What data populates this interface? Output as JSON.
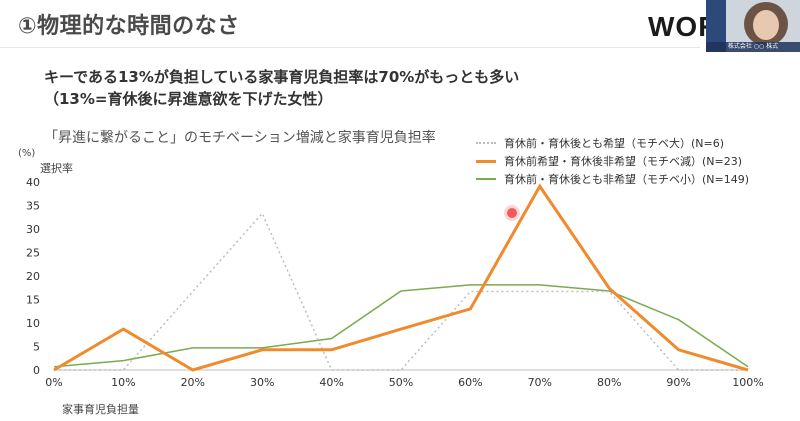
{
  "slide": {
    "title": "①物理的な時間のなさ",
    "logo_text": "WOR",
    "presenter_caption": "株式会社 ○○ 株式"
  },
  "headline": {
    "line1": "キーである13%が負担している家事育児負担率は70%がもっとも多い",
    "line2": "（13%=育休後に昇進意欲を下げた女性）"
  },
  "chart_data": {
    "type": "line",
    "title": "「昇進に繋がること」のモチベーション増減と家事育児負担率",
    "unit_label": "(%)",
    "ylabel": "選択率",
    "xlabel": "家事育児負担量",
    "categories": [
      "0%",
      "10%",
      "20%",
      "30%",
      "40%",
      "50%",
      "60%",
      "70%",
      "80%",
      "90%",
      "100%"
    ],
    "y_ticks": [
      "0",
      "5",
      "10",
      "15",
      "20",
      "25",
      "30",
      "35",
      "40"
    ],
    "ylim": [
      0,
      40
    ],
    "grid": false,
    "legend_position": "top-right",
    "series": [
      {
        "name": "育休前・育休後とも希望（モチベ大）(N=6)",
        "color": "#bdbdbd",
        "style": "dotted",
        "values": [
          0,
          0,
          16.7,
          33.3,
          0,
          0,
          16.7,
          16.7,
          16.7,
          0,
          0
        ]
      },
      {
        "name": "育休前希望・育休後非希望（モチベ減）(N=23)",
        "color": "#f08a2c",
        "style": "solid-thick",
        "values": [
          0,
          8.7,
          0,
          4.3,
          4.3,
          8.7,
          13.0,
          39.1,
          17.4,
          4.3,
          0
        ]
      },
      {
        "name": "育休前・育休後とも非希望（モチベ小）(N=149)",
        "color": "#7aab4e",
        "style": "solid",
        "values": [
          0.7,
          2.0,
          4.7,
          4.7,
          6.7,
          16.8,
          18.1,
          18.1,
          16.8,
          10.7,
          0.7
        ]
      }
    ]
  }
}
